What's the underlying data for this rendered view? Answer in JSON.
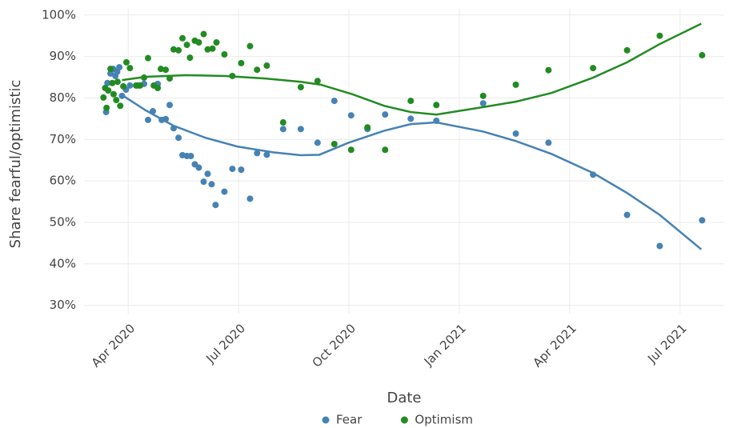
{
  "chart_data": {
    "type": "scatter",
    "x_label": "Date",
    "y_label": "Share fearful/optimistic",
    "xlim": [
      2020.15,
      2021.6
    ],
    "ylim": [
      28,
      101.5
    ],
    "xticks": [
      {
        "value": 2020.25,
        "label": "Apr 2020"
      },
      {
        "value": 2020.5,
        "label": "Jul 2020"
      },
      {
        "value": 2020.75,
        "label": "Oct 2020"
      },
      {
        "value": 2021.0,
        "label": "Jan 2021"
      },
      {
        "value": 2021.25,
        "label": "Apr 2021"
      },
      {
        "value": 2021.5,
        "label": "Jul 2021"
      }
    ],
    "yticks": [
      {
        "value": 30,
        "label": "30%"
      },
      {
        "value": 40,
        "label": "40%"
      },
      {
        "value": 50,
        "label": "50%"
      },
      {
        "value": 60,
        "label": "60%"
      },
      {
        "value": 70,
        "label": "70%"
      },
      {
        "value": 80,
        "label": "80%"
      },
      {
        "value": 90,
        "label": "90%"
      },
      {
        "value": 100,
        "label": "100%"
      }
    ],
    "grid": true,
    "legend": "bottom",
    "series": [
      {
        "name": "Fear",
        "color": "#4682b4",
        "x": [
          2020.2,
          2020.203,
          2020.21,
          2020.216,
          2020.221,
          2020.225,
          2020.23,
          2020.236,
          2020.245,
          2020.254,
          2020.272,
          2020.286,
          2020.295,
          2020.306,
          2020.317,
          2020.326,
          2020.335,
          2020.344,
          2020.353,
          2020.364,
          2020.373,
          2020.383,
          2020.392,
          2020.401,
          2020.41,
          2020.421,
          2020.43,
          2020.439,
          2020.448,
          2020.468,
          2020.486,
          2020.506,
          2020.526,
          2020.542,
          2020.564,
          2020.601,
          2020.641,
          2020.679,
          2020.717,
          2020.755,
          2020.792,
          2020.832,
          2020.89,
          2020.948,
          2021.054,
          2021.128,
          2021.202,
          2021.303,
          2021.38,
          2021.454,
          2021.55
        ],
        "values": [
          76.6,
          83.6,
          85.9,
          87.0,
          85.3,
          86.3,
          87.4,
          80.5,
          82.0,
          83.0,
          83.0,
          83.4,
          74.7,
          76.8,
          83.4,
          74.7,
          74.9,
          78.3,
          72.7,
          70.4,
          66.2,
          66.0,
          66.0,
          64.0,
          63.2,
          59.8,
          61.7,
          59.2,
          54.2,
          57.4,
          62.9,
          62.7,
          55.7,
          66.7,
          66.3,
          72.5,
          72.5,
          69.2,
          79.3,
          75.8,
          72.5,
          76.0,
          75.0,
          74.5,
          78.7,
          71.4,
          69.2,
          61.5,
          51.8,
          44.3,
          50.5
        ],
        "trend": {
          "x": [
            2020.236,
            2020.29,
            2020.353,
            2020.425,
            2020.497,
            2020.578,
            2020.641,
            2020.683,
            2020.749,
            2020.83,
            2020.89,
            2020.948,
            2021.054,
            2021.128,
            2021.209,
            2021.303,
            2021.38,
            2021.454,
            2021.548
          ],
          "values": [
            80.7,
            77.0,
            73.3,
            70.4,
            68.3,
            66.9,
            66.2,
            66.3,
            69.2,
            72.1,
            73.7,
            74.1,
            71.9,
            69.6,
            66.5,
            61.9,
            57.1,
            51.8,
            43.5
          ]
        }
      },
      {
        "name": "Optimism",
        "color": "#228b22",
        "x": [
          2020.194,
          2020.198,
          2020.201,
          2020.205,
          2020.21,
          2020.214,
          2020.217,
          2020.223,
          2020.226,
          2020.232,
          2020.239,
          2020.246,
          2020.254,
          2020.268,
          2020.277,
          2020.286,
          2020.295,
          2020.308,
          2020.317,
          2020.324,
          2020.335,
          2020.344,
          2020.353,
          2020.364,
          2020.373,
          2020.383,
          2020.39,
          2020.401,
          2020.41,
          2020.421,
          2020.43,
          2020.441,
          2020.45,
          2020.468,
          2020.486,
          2020.506,
          2020.526,
          2020.542,
          2020.564,
          2020.601,
          2020.641,
          2020.679,
          2020.717,
          2020.755,
          2020.792,
          2020.832,
          2020.89,
          2020.948,
          2021.054,
          2021.128,
          2021.202,
          2021.303,
          2021.38,
          2021.454,
          2021.55
        ],
        "values": [
          80.1,
          82.4,
          77.6,
          81.8,
          87.0,
          83.6,
          80.9,
          79.5,
          83.9,
          78.1,
          82.8,
          88.6,
          87.2,
          83.0,
          83.0,
          84.9,
          89.6,
          83.0,
          82.4,
          87.0,
          86.8,
          84.7,
          91.7,
          91.5,
          94.4,
          92.8,
          89.7,
          93.8,
          93.4,
          95.4,
          91.7,
          91.9,
          93.4,
          90.5,
          85.3,
          88.4,
          92.5,
          86.8,
          87.8,
          74.1,
          82.6,
          84.1,
          68.9,
          67.5,
          72.9,
          67.5,
          79.3,
          78.3,
          80.5,
          83.2,
          86.7,
          87.2,
          91.5,
          95.0,
          90.3
        ],
        "trend": {
          "x": [
            2020.236,
            2020.29,
            2020.38,
            2020.47,
            2020.56,
            2020.641,
            2020.686,
            2020.758,
            2020.83,
            2020.89,
            2020.948,
            2021.054,
            2021.128,
            2021.209,
            2021.303,
            2021.38,
            2021.454,
            2021.548
          ],
          "values": [
            84.3,
            85.1,
            85.5,
            85.3,
            84.7,
            83.9,
            83.2,
            80.9,
            78.1,
            76.6,
            76.0,
            77.8,
            79.1,
            81.2,
            84.9,
            88.6,
            93.0,
            97.9
          ]
        }
      }
    ]
  }
}
